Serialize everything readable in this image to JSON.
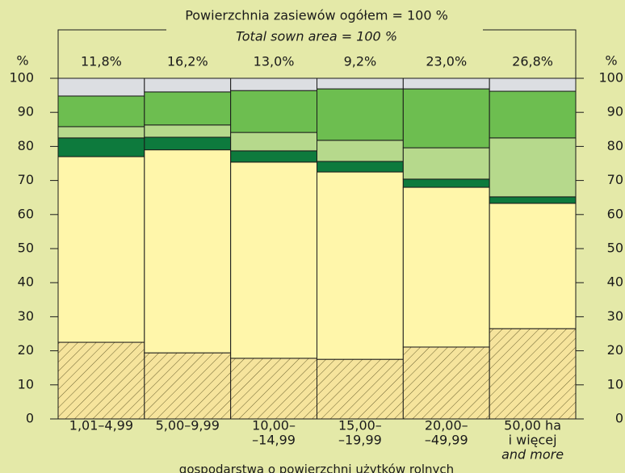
{
  "chart_data": {
    "type": "stacked_bar",
    "title": "Powierzchnia zasiewów ogółem = 100 %",
    "subtitle": "Total sown area = 100 %",
    "ylabel": "%",
    "y2label": "%",
    "xlabel": "gospodarstwa o powierzchni użytków rolnych",
    "categories": [
      [
        "1,01–4,99"
      ],
      [
        "5,00–9,99"
      ],
      [
        "10,00–",
        "–14,99"
      ],
      [
        "15,00–",
        "–19,99"
      ],
      [
        "20,00–",
        "–49,99"
      ],
      [
        "50,00 ha",
        "i więcej"
      ]
    ],
    "category_translations": [
      null,
      null,
      null,
      null,
      null,
      "and more"
    ],
    "column_labels": [
      "11,8%",
      "16,2%",
      "13,0%",
      "9,2%",
      "23,0%",
      "26,8%"
    ],
    "series": [
      {
        "color": "#f6e49c",
        "hatch": true,
        "values": [
          22.5,
          19.4,
          17.8,
          17.5,
          21.1,
          26.5
        ]
      },
      {
        "color": "#fff6aa",
        "values": [
          54.5,
          59.6,
          57.6,
          55.0,
          46.9,
          36.8
        ]
      },
      {
        "color": "#0d7a3d",
        "values": [
          5.5,
          3.7,
          3.3,
          3.1,
          2.4,
          1.9
        ]
      },
      {
        "color": "#b6d98c",
        "values": [
          3.3,
          3.6,
          5.4,
          6.2,
          9.2,
          17.3
        ]
      },
      {
        "color": "#6dbe50",
        "values": [
          9.0,
          9.7,
          12.3,
          15.1,
          17.3,
          13.7
        ]
      },
      {
        "color": "#dcdee2",
        "values": [
          5.2,
          4.0,
          3.6,
          3.1,
          3.1,
          3.8
        ]
      }
    ],
    "ylim": [
      0,
      100
    ],
    "yticks": [
      0,
      10,
      20,
      30,
      40,
      50,
      60,
      70,
      80,
      90,
      100
    ],
    "y2lim": [
      0,
      100
    ],
    "y2ticks": [
      0,
      10,
      20,
      30,
      40,
      50,
      60,
      70,
      80,
      90,
      100
    ]
  }
}
